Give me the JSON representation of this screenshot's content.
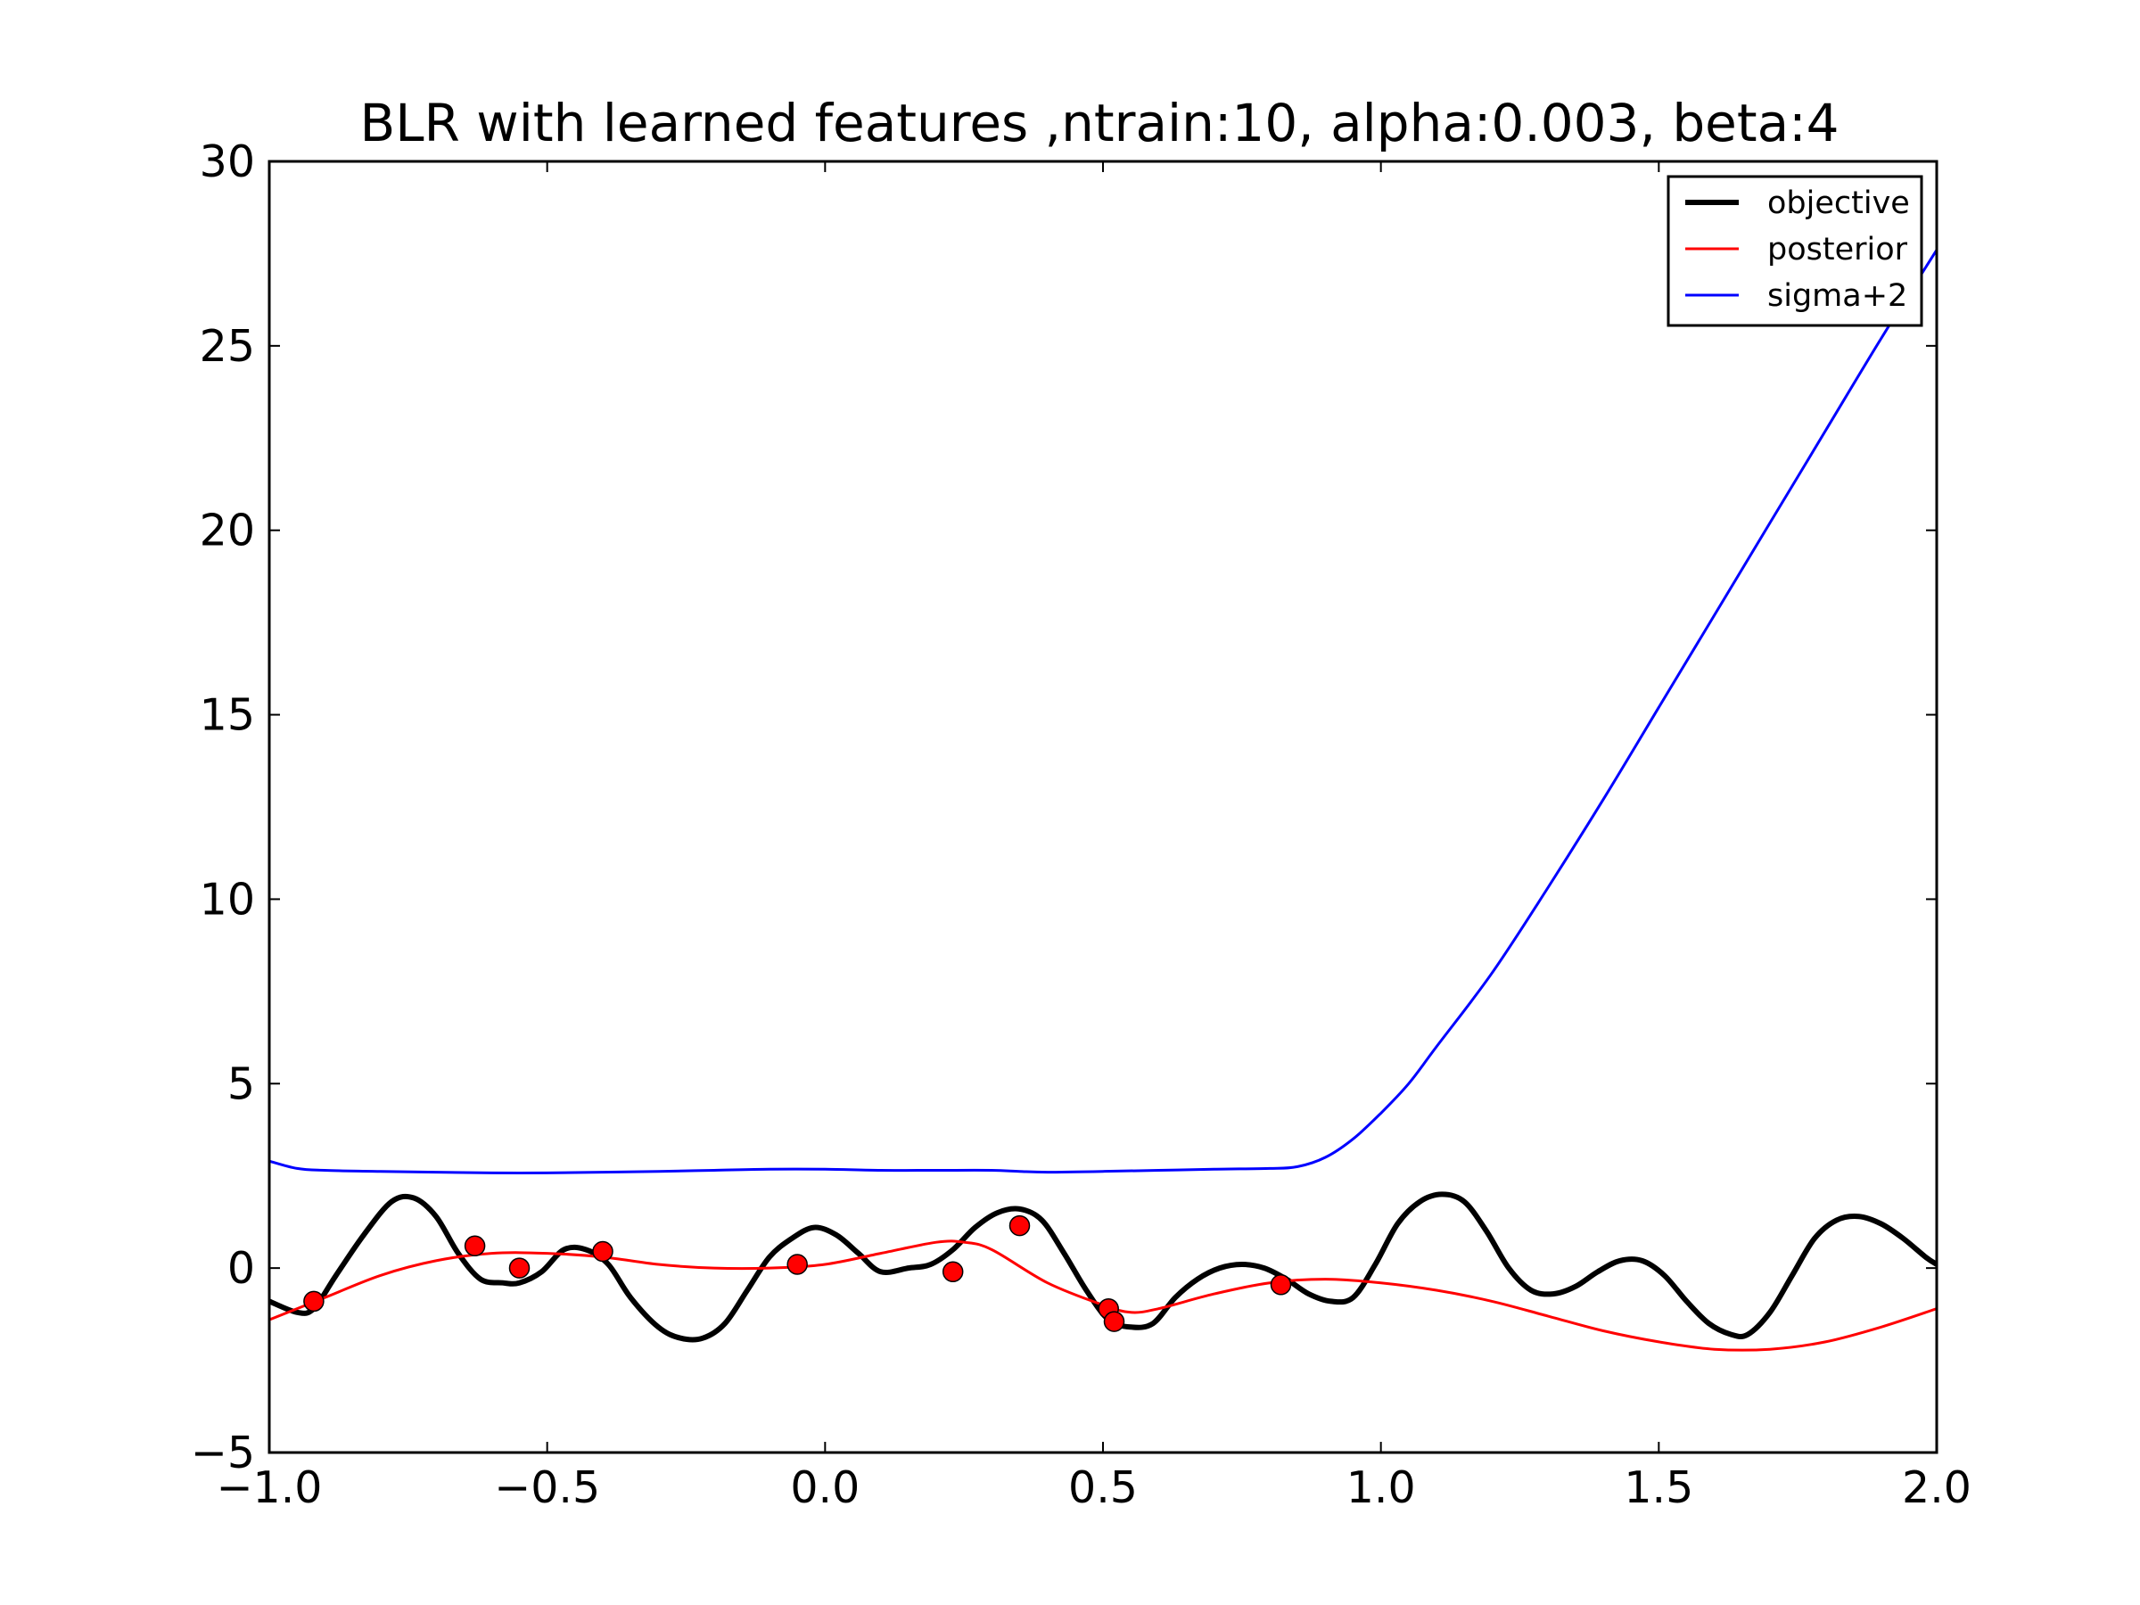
{
  "chart_data": {
    "type": "line",
    "title": "BLR with learned features ,ntrain:10, alpha:0.003, beta:4",
    "xlabel": "",
    "ylabel": "",
    "xlim": [
      -1.0,
      2.0
    ],
    "ylim": [
      -5,
      30
    ],
    "grid": false,
    "legend_position": "top-right",
    "x_ticks": [
      -1.0,
      -0.5,
      0.0,
      0.5,
      1.0,
      1.5,
      2.0
    ],
    "x_tick_labels": [
      "−1.0",
      "−0.5",
      "0.0",
      "0.5",
      "1.0",
      "1.5",
      "2.0"
    ],
    "y_ticks": [
      -5,
      0,
      5,
      10,
      15,
      20,
      25,
      30
    ],
    "y_tick_labels": [
      "−5",
      "0",
      "5",
      "10",
      "15",
      "20",
      "25",
      "30"
    ],
    "series": [
      {
        "name": "objective",
        "color": "#000000",
        "x": [
          -1.0,
          -0.95,
          -0.92,
          -0.88,
          -0.83,
          -0.78,
          -0.74,
          -0.7,
          -0.66,
          -0.62,
          -0.58,
          -0.55,
          -0.51,
          -0.47,
          -0.43,
          -0.39,
          -0.35,
          -0.3,
          -0.26,
          -0.22,
          -0.18,
          -0.14,
          -0.1,
          -0.06,
          -0.02,
          0.02,
          0.06,
          0.1,
          0.15,
          0.19,
          0.23,
          0.27,
          0.31,
          0.35,
          0.39,
          0.43,
          0.47,
          0.51,
          0.55,
          0.59,
          0.63,
          0.67,
          0.71,
          0.75,
          0.79,
          0.83,
          0.87,
          0.91,
          0.95,
          0.99,
          1.03,
          1.07,
          1.11,
          1.15,
          1.19,
          1.23,
          1.27,
          1.31,
          1.35,
          1.39,
          1.43,
          1.47,
          1.51,
          1.55,
          1.59,
          1.63,
          1.66,
          1.7,
          1.74,
          1.78,
          1.82,
          1.86,
          1.9,
          1.94,
          1.98,
          2.0
        ],
        "y": [
          -0.9,
          -1.2,
          -1.1,
          -0.2,
          0.9,
          1.8,
          1.9,
          1.4,
          0.4,
          -0.3,
          -0.4,
          -0.4,
          -0.1,
          0.5,
          0.5,
          0.1,
          -0.8,
          -1.6,
          -1.9,
          -1.9,
          -1.5,
          -0.6,
          0.3,
          0.8,
          1.1,
          0.9,
          0.4,
          -0.1,
          0.0,
          0.1,
          0.5,
          1.1,
          1.5,
          1.6,
          1.3,
          0.4,
          -0.6,
          -1.4,
          -1.6,
          -1.5,
          -0.8,
          -0.3,
          0.0,
          0.1,
          0.0,
          -0.3,
          -0.7,
          -0.9,
          -0.8,
          0.1,
          1.2,
          1.8,
          2.0,
          1.8,
          1.0,
          0.0,
          -0.6,
          -0.7,
          -0.5,
          -0.1,
          0.2,
          0.2,
          -0.2,
          -0.9,
          -1.5,
          -1.8,
          -1.8,
          -1.2,
          -0.2,
          0.8,
          1.3,
          1.4,
          1.2,
          0.8,
          0.3,
          0.1
        ]
      },
      {
        "name": "posterior",
        "color": "#ff0000",
        "x": [
          -1.0,
          -0.9,
          -0.8,
          -0.7,
          -0.6,
          -0.5,
          -0.4,
          -0.3,
          -0.2,
          -0.1,
          0.0,
          0.1,
          0.2,
          0.25,
          0.3,
          0.4,
          0.5,
          0.55,
          0.6,
          0.7,
          0.8,
          0.9,
          1.0,
          1.1,
          1.2,
          1.3,
          1.4,
          1.5,
          1.6,
          1.7,
          1.8,
          1.9,
          2.0
        ],
        "y": [
          -1.4,
          -0.8,
          -0.2,
          0.2,
          0.4,
          0.4,
          0.3,
          0.1,
          0.0,
          0.0,
          0.1,
          0.4,
          0.7,
          0.7,
          0.5,
          -0.4,
          -1.0,
          -1.2,
          -1.1,
          -0.7,
          -0.4,
          -0.3,
          -0.4,
          -0.6,
          -0.9,
          -1.3,
          -1.7,
          -2.0,
          -2.2,
          -2.2,
          -2.0,
          -1.6,
          -1.1
        ]
      },
      {
        "name": "sigma+2",
        "color": "#0000ff",
        "x": [
          -1.0,
          -0.95,
          -0.9,
          -0.8,
          -0.7,
          -0.6,
          -0.5,
          -0.4,
          -0.3,
          -0.2,
          -0.1,
          0.0,
          0.1,
          0.2,
          0.3,
          0.35,
          0.4,
          0.5,
          0.6,
          0.7,
          0.8,
          0.85,
          0.9,
          0.95,
          1.0,
          1.05,
          1.1,
          1.2,
          1.3,
          1.4,
          1.5,
          1.6,
          1.7,
          1.8,
          1.9,
          2.0
        ],
        "y": [
          2.9,
          2.7,
          2.65,
          2.62,
          2.6,
          2.58,
          2.58,
          2.6,
          2.62,
          2.65,
          2.68,
          2.68,
          2.65,
          2.65,
          2.65,
          2.62,
          2.6,
          2.62,
          2.65,
          2.68,
          2.7,
          2.75,
          3.0,
          3.5,
          4.2,
          5.0,
          6.0,
          8.0,
          10.3,
          12.7,
          15.2,
          17.7,
          20.2,
          22.7,
          25.2,
          27.6
        ]
      }
    ],
    "training_points": {
      "color": "#ff0000",
      "x": [
        -0.92,
        -0.63,
        -0.55,
        -0.4,
        -0.05,
        0.23,
        0.35,
        0.51,
        0.52,
        0.82
      ],
      "y": [
        -0.9,
        0.6,
        0.0,
        0.45,
        0.1,
        -0.1,
        1.15,
        -1.1,
        -1.45,
        -0.45
      ]
    }
  }
}
